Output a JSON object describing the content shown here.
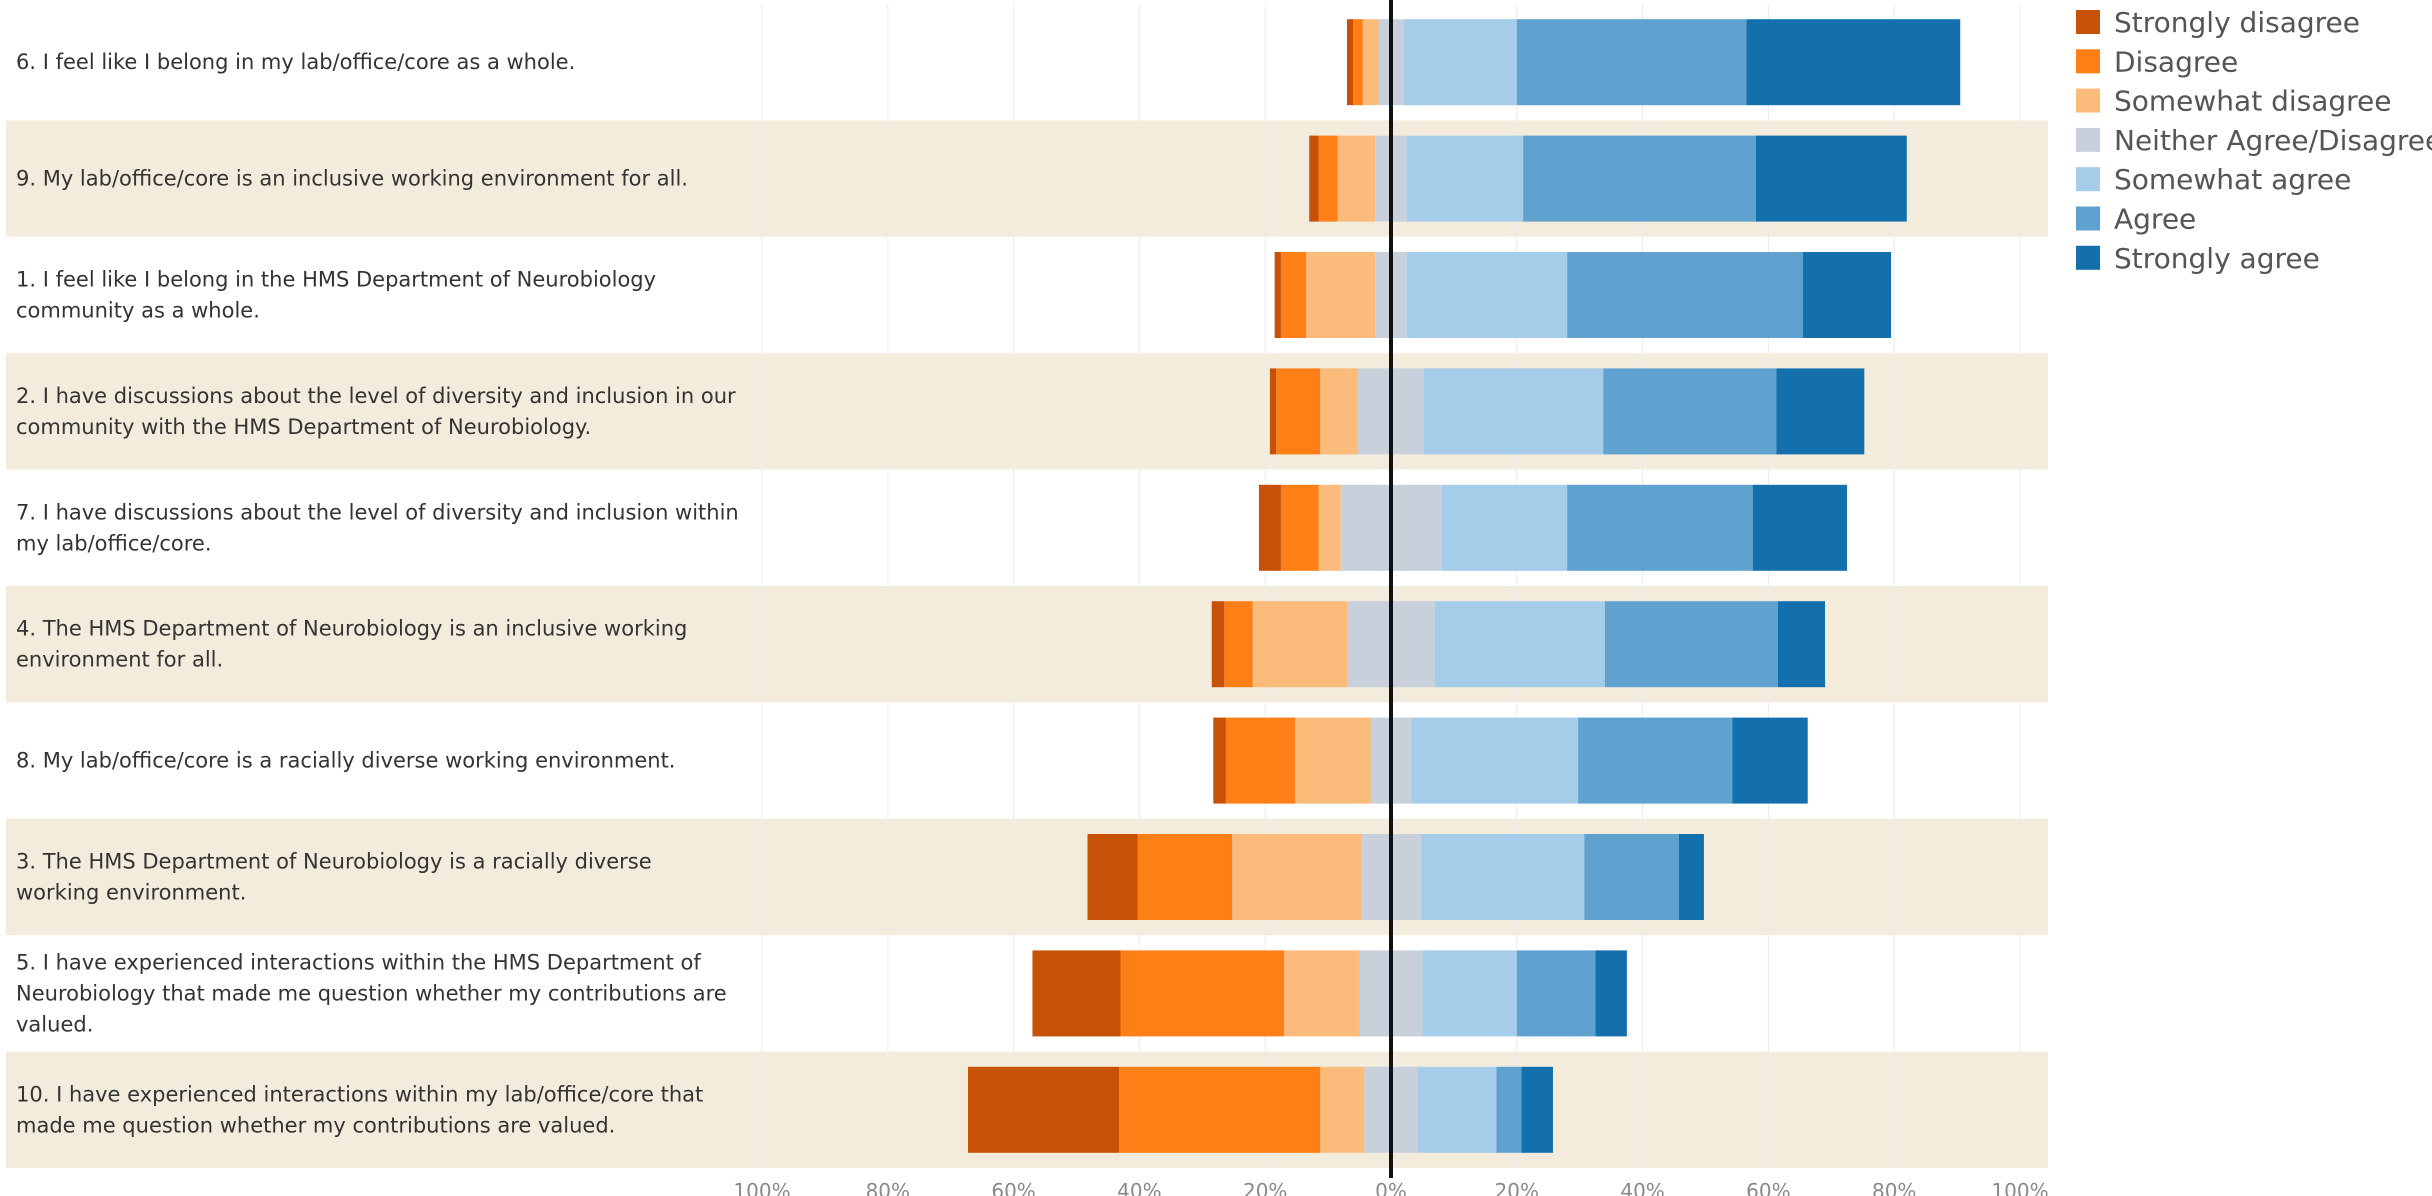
{
  "chart_data": {
    "type": "bar",
    "orientation": "horizontal",
    "stacking": "diverging",
    "neutral_split": "centered",
    "grid": true,
    "legend_position": "top-right",
    "xlim": [
      -100,
      100
    ],
    "x_ticks": [
      "100%",
      "80%",
      "60%",
      "40%",
      "20%",
      "0%",
      "20%",
      "40%",
      "60%",
      "80%",
      "100%"
    ],
    "categories": [
      {
        "lines": [
          "6. I feel like I belong in my lab/office/core as a whole."
        ]
      },
      {
        "lines": [
          "9. My lab/office/core is an inclusive working environment for all."
        ]
      },
      {
        "lines": [
          "1. I feel like I belong in the HMS Department of Neurobiology",
          "community as a whole."
        ]
      },
      {
        "lines": [
          "2. I have discussions about the level of diversity and inclusion in our",
          "community with the HMS Department of Neurobiology."
        ]
      },
      {
        "lines": [
          "7. I have discussions about the level of diversity and inclusion within",
          "my lab/office/core."
        ]
      },
      {
        "lines": [
          "4. The HMS Department of Neurobiology is an inclusive working",
          "environment for all."
        ]
      },
      {
        "lines": [
          "8. My lab/office/core is a racially diverse working environment."
        ]
      },
      {
        "lines": [
          "3. The HMS Department of Neurobiology is a racially diverse",
          "working environment."
        ]
      },
      {
        "lines": [
          "5. I have experienced interactions within the HMS Department of",
          "Neurobiology that made me question whether my contributions are",
          "valued."
        ]
      },
      {
        "lines": [
          "10. I have experienced interactions within my lab/office/core that",
          "made me question whether my contributions are valued."
        ]
      }
    ],
    "series": [
      {
        "name": "Strongly disagree",
        "color": "#c75106",
        "values": [
          1,
          1.5,
          1,
          1,
          3.5,
          2,
          2,
          8,
          14,
          24
        ]
      },
      {
        "name": "Disagree",
        "color": "#fd7f15",
        "values": [
          1.5,
          3,
          4,
          7,
          6,
          4.5,
          11,
          15,
          26,
          32
        ]
      },
      {
        "name": "Somewhat disagree",
        "color": "#fbbb7a",
        "values": [
          2.5,
          6,
          11,
          6,
          3.5,
          15,
          12,
          20.5,
          12,
          7
        ]
      },
      {
        "name": "Neither Agree/Disagree",
        "color": "#c8d1db",
        "values": [
          4,
          5,
          5,
          10.5,
          16,
          14,
          6.5,
          9.5,
          10,
          8.5
        ]
      },
      {
        "name": "Somewhat agree",
        "color": "#a5cce9",
        "values": [
          18,
          18.5,
          25.5,
          28.5,
          20,
          27,
          26.5,
          26,
          15,
          12.5
        ]
      },
      {
        "name": "Agree",
        "color": "#5fa2d0",
        "values": [
          36.5,
          37,
          37.5,
          27.5,
          29.5,
          27.5,
          24.5,
          15,
          12.5,
          4
        ]
      },
      {
        "name": "Strongly agree",
        "color": "#1470ad",
        "values": [
          34,
          24,
          14,
          14,
          15,
          7.5,
          12,
          4,
          5,
          5
        ]
      }
    ]
  }
}
